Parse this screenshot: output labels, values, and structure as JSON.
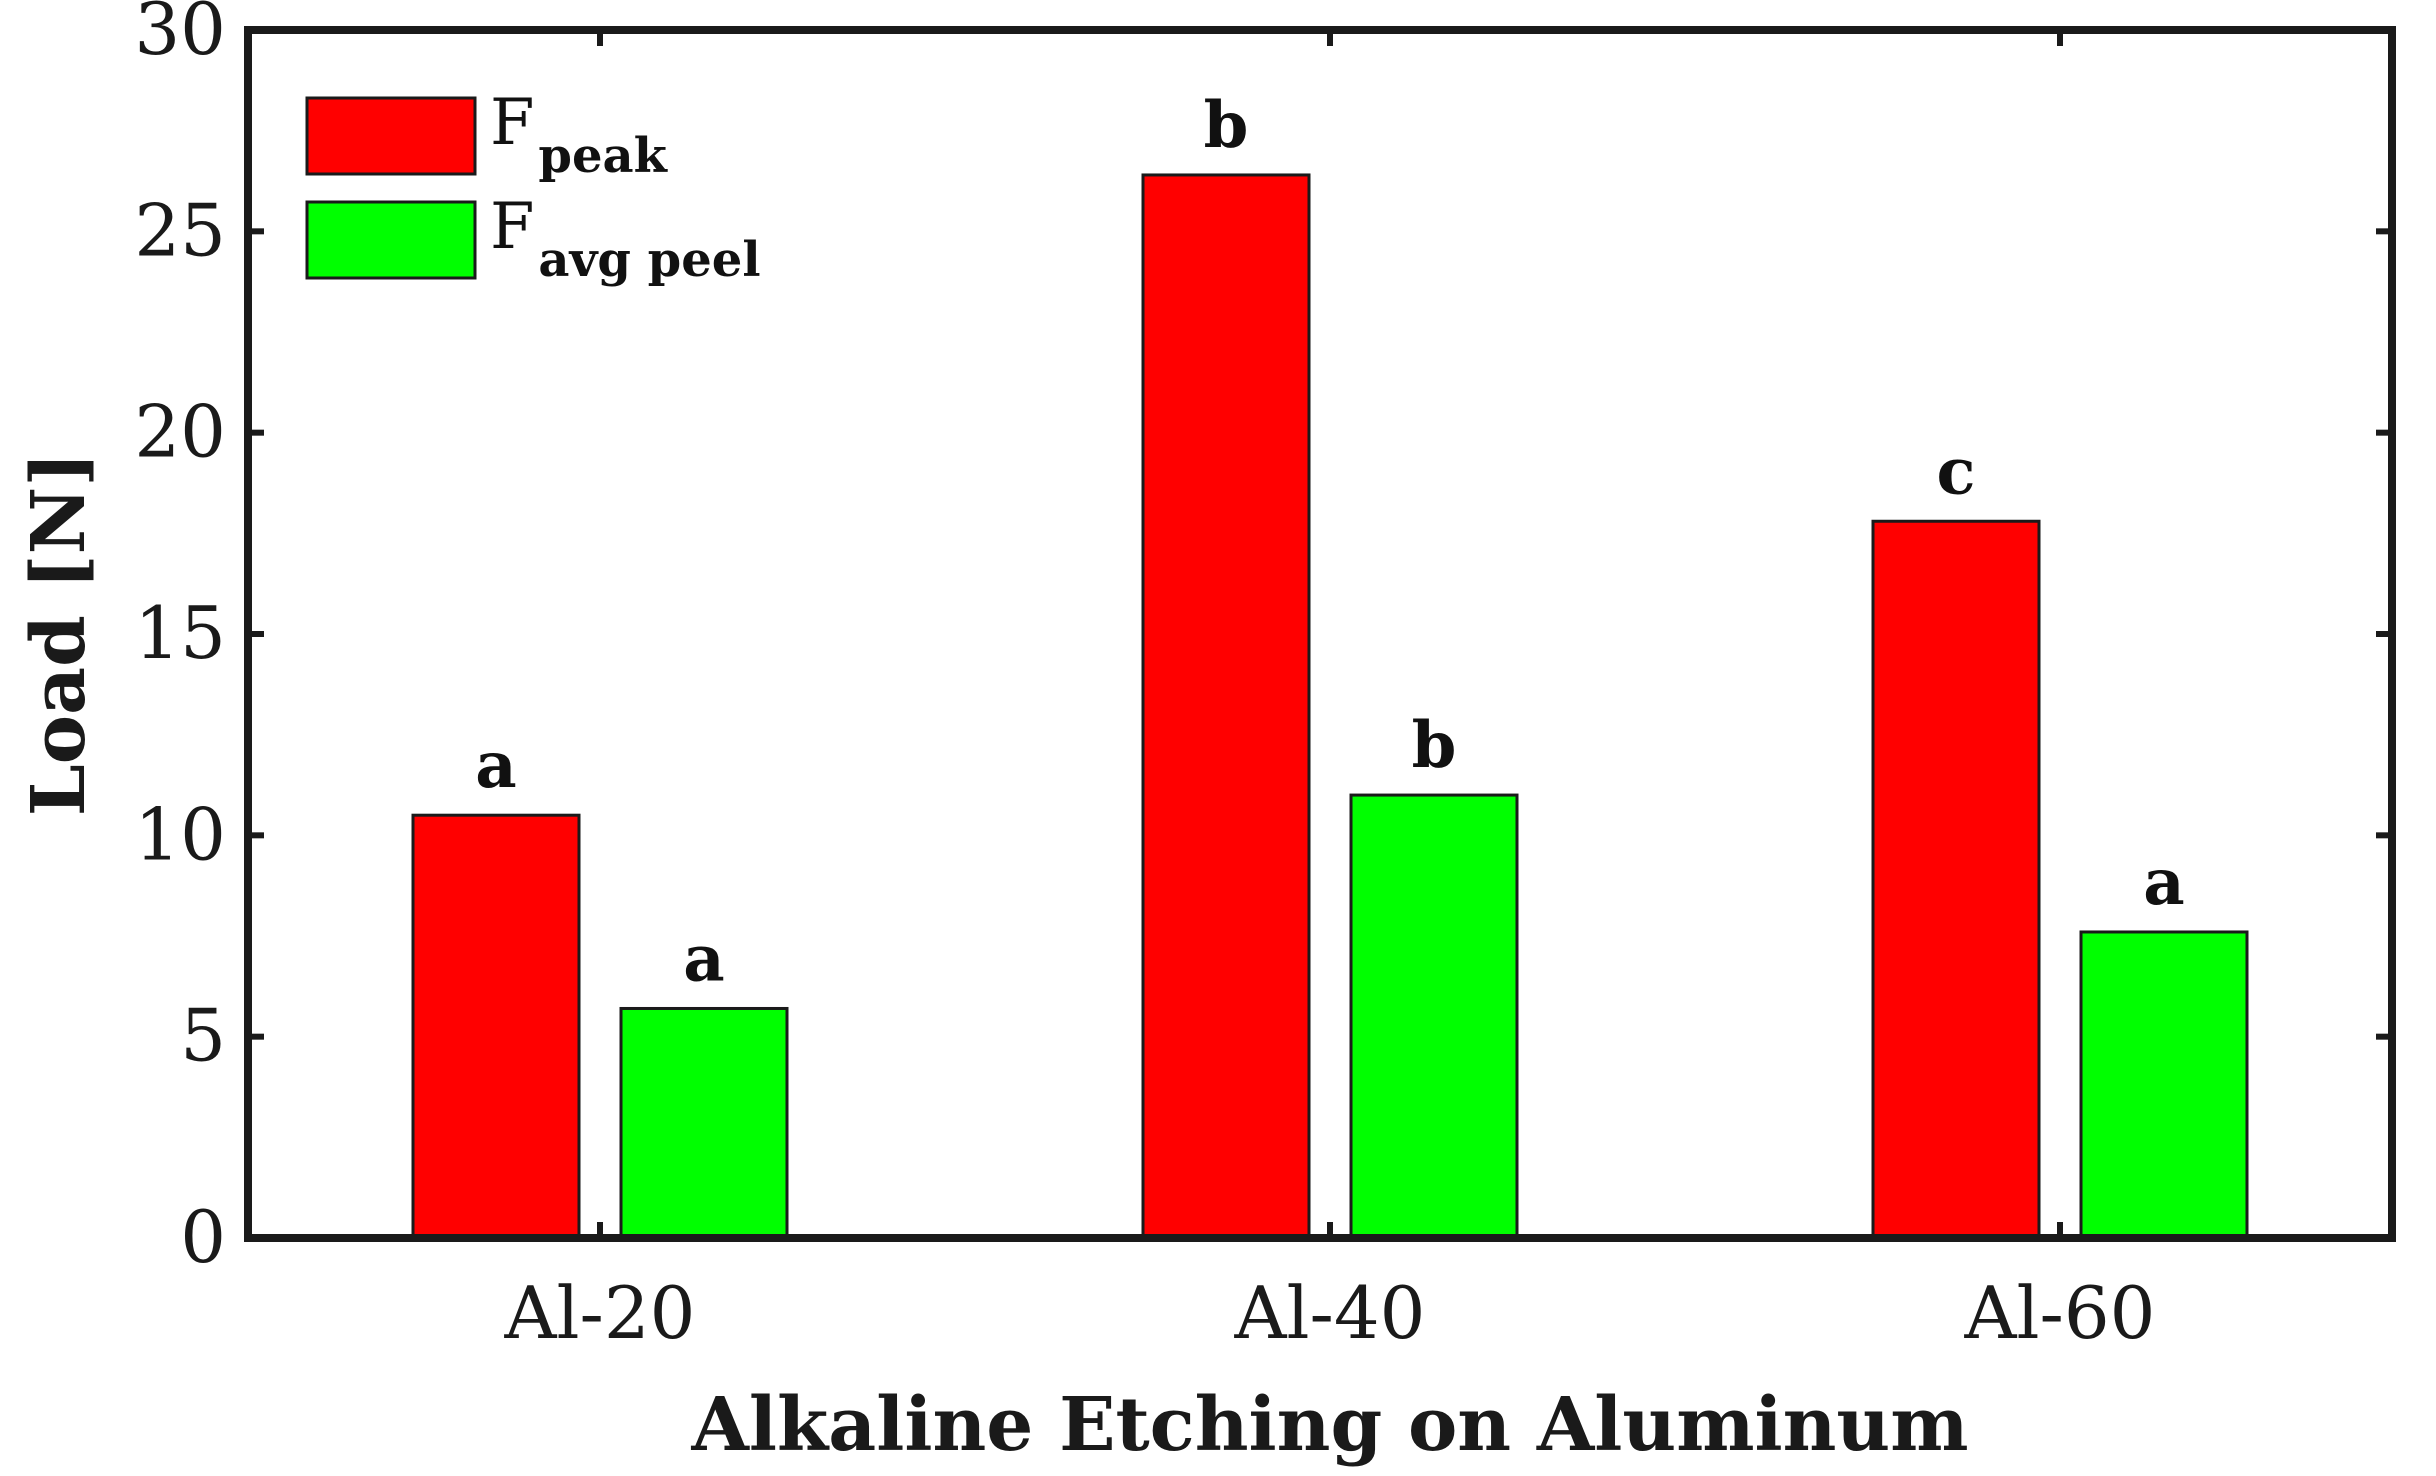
{
  "chart_data": {
    "type": "bar",
    "xlabel": "Alkaline Etching on Aluminum",
    "ylabel": "Load [N]",
    "ylim": [
      0,
      30
    ],
    "yticks": [
      0,
      5,
      10,
      15,
      20,
      25,
      30
    ],
    "categories": [
      "Al-20",
      "Al-40",
      "Al-60"
    ],
    "grid": false,
    "legend_position": "top-left",
    "series": [
      {
        "name_main": "F",
        "name_sub": "peak",
        "color": "#ff0000",
        "values": [
          10.5,
          26.4,
          17.8
        ],
        "labels": [
          "a",
          "b",
          "c"
        ]
      },
      {
        "name_main": "F",
        "name_sub": "avg peel",
        "color": "#00ff00",
        "values": [
          5.7,
          11.0,
          7.6
        ],
        "labels": [
          "a",
          "b",
          "a"
        ]
      }
    ]
  }
}
